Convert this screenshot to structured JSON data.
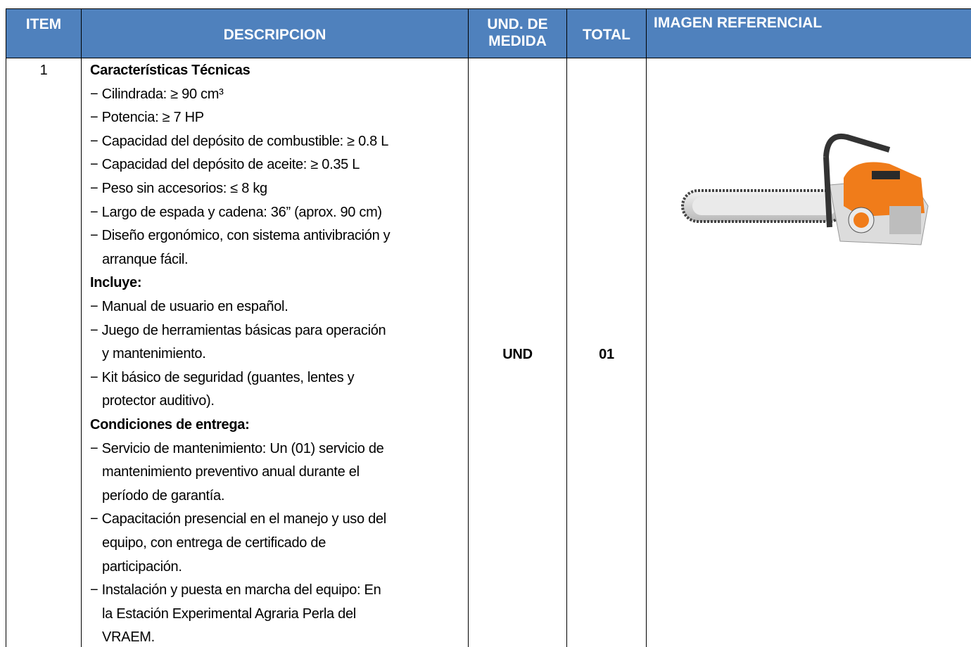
{
  "table": {
    "header": [
      "ITEM",
      "DESCRIPCION",
      "UND. DE MEDIDA",
      "TOTAL",
      "IMAGEN REFERENCIAL"
    ],
    "rows": [
      {
        "item": "1",
        "description": [
          {
            "heading": "Características Técnicas",
            "items": [
              [
                "− Cilindrada: ≥ 90 cm³"
              ],
              [
                "− Potencia: ≥ 7 HP"
              ],
              [
                "− Capacidad del depósito de combustible: ≥ 0.8 L"
              ],
              [
                "− Capacidad del depósito de aceite: ≥ 0.35 L"
              ],
              [
                "− Peso sin accesorios: ≤ 8 kg"
              ],
              [
                "− Largo de espada y cadena: 36” (aprox. 90 cm)"
              ],
              [
                "− Diseño ergonómico, con sistema antivibración y",
                "arranque fácil."
              ]
            ]
          },
          {
            "heading": "Incluye:",
            "items": [
              [
                "− Manual de usuario en español."
              ],
              [
                "− Juego de herramientas básicas para operación",
                "y mantenimiento."
              ],
              [
                "− Kit básico de seguridad (guantes, lentes y",
                "protector auditivo)."
              ]
            ]
          },
          {
            "heading": "Condiciones de entrega:",
            "items": [
              [
                "− Servicio de mantenimiento: Un (01) servicio de",
                "mantenimiento preventivo anual durante el",
                "período de garantía."
              ],
              [
                "− Capacitación presencial en el manejo y uso del",
                "equipo, con entrega de certificado de",
                "participación."
              ],
              [
                "− Instalación y puesta en marcha del equipo: En",
                "la Estación Experimental Agraria Perla del",
                "VRAEM."
              ]
            ]
          }
        ],
        "unit": "UND",
        "total": "01"
      }
    ]
  }
}
